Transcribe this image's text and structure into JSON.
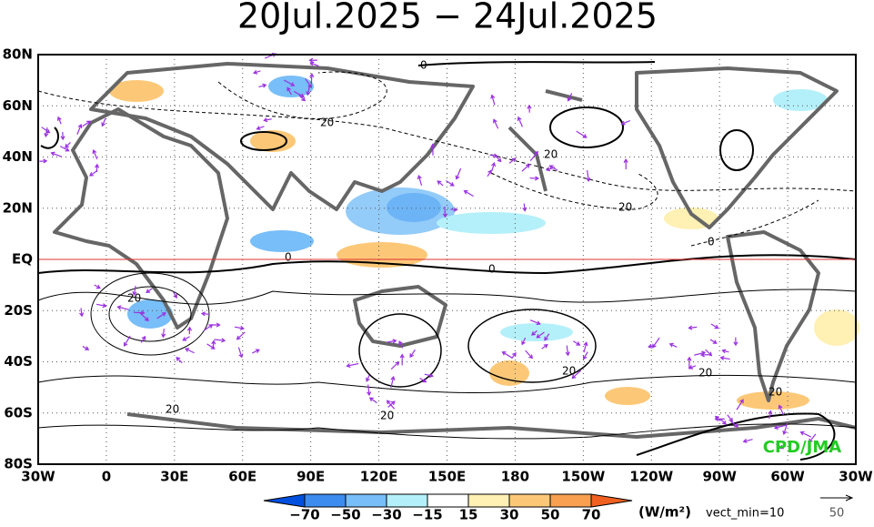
{
  "header": {
    "title": "20Jul.2025 − 24Jul.2025"
  },
  "map": {
    "lat_labels": [
      "80N",
      "60N",
      "40N",
      "20N",
      "EQ",
      "20S",
      "40S",
      "60S",
      "80S"
    ],
    "lon_labels": [
      "30W",
      "0",
      "30E",
      "60E",
      "90E",
      "120E",
      "150E",
      "180",
      "150W",
      "120W",
      "90W",
      "60W",
      "30W"
    ],
    "contour_labels": [
      "0",
      "20",
      "20",
      "0",
      "0",
      "20",
      "20",
      "20",
      "20",
      "20",
      "20",
      "20",
      "0"
    ],
    "credit": "CPD/JMA"
  },
  "colorbar": {
    "labels": [
      "−70",
      "−50",
      "−30",
      "−15",
      "15",
      "30",
      "50",
      "70"
    ],
    "unit": "(W/m²)",
    "note": "vect_min=10"
  },
  "vector_ref": {
    "label": "50"
  }
}
